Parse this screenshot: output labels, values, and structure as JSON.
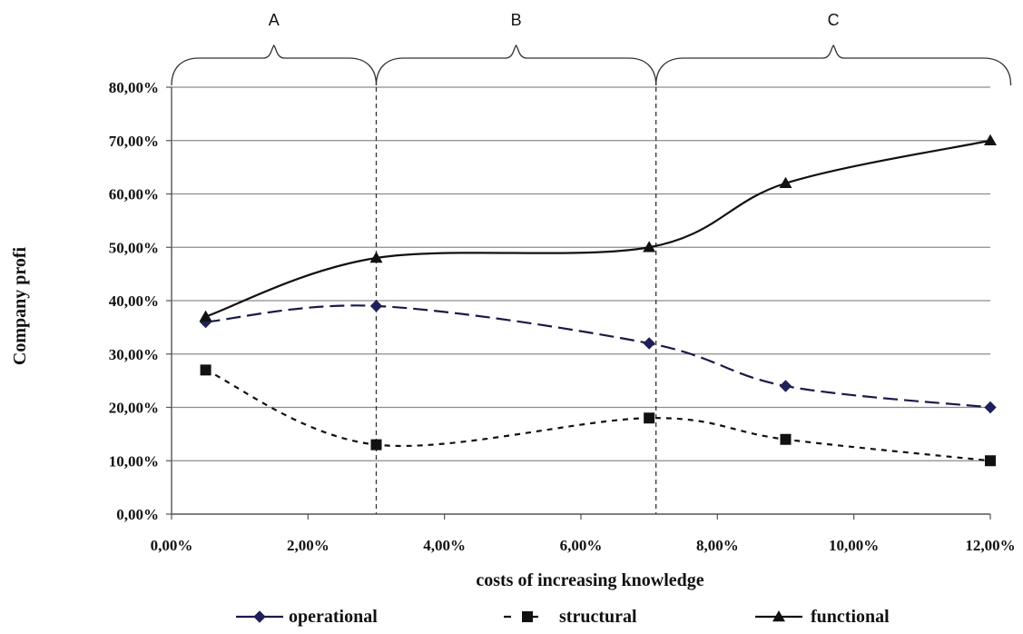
{
  "chart_data": {
    "type": "line",
    "xlabel": "costs of increasing knowledge",
    "ylabel": "Company profi",
    "x_ticks": [
      0,
      2,
      4,
      6,
      8,
      10,
      12
    ],
    "x_tick_labels": [
      "0,00%",
      "2,00%",
      "4,00%",
      "6,00%",
      "8,00%",
      "10,00%",
      "12,00%"
    ],
    "xlim": [
      0,
      12
    ],
    "y_ticks": [
      0,
      10,
      20,
      30,
      40,
      50,
      60,
      70,
      80
    ],
    "y_tick_labels": [
      "0,00%",
      "10,00%",
      "20,00%",
      "30,00%",
      "40,00%",
      "50,00%",
      "60,00%",
      "70,00%",
      "80,00%"
    ],
    "ylim": [
      0,
      80
    ],
    "grid": "horizontal",
    "legend_position": "bottom",
    "series": [
      {
        "name": "operational",
        "marker": "diamond",
        "line_style": "long-dash",
        "color": "#1a1a4a",
        "x": [
          0.5,
          3,
          7,
          9,
          12
        ],
        "y": [
          36,
          39,
          32,
          24,
          20
        ]
      },
      {
        "name": "structural",
        "marker": "square",
        "line_style": "short-dash",
        "color": "#111111",
        "x": [
          0.5,
          3,
          7,
          9,
          12
        ],
        "y": [
          27,
          13,
          18,
          14,
          10
        ]
      },
      {
        "name": "functional",
        "marker": "triangle",
        "line_style": "solid",
        "color": "#111111",
        "x": [
          0.5,
          3,
          7,
          9,
          12
        ],
        "y": [
          37,
          48,
          50,
          62,
          70
        ]
      }
    ],
    "vertical_markers": [
      3,
      7.1
    ],
    "regions": [
      {
        "label": "A",
        "from": 0,
        "to": 3
      },
      {
        "label": "B",
        "from": 3,
        "to": 7.1
      },
      {
        "label": "C",
        "from": 7.1,
        "to": 12.3
      }
    ]
  }
}
